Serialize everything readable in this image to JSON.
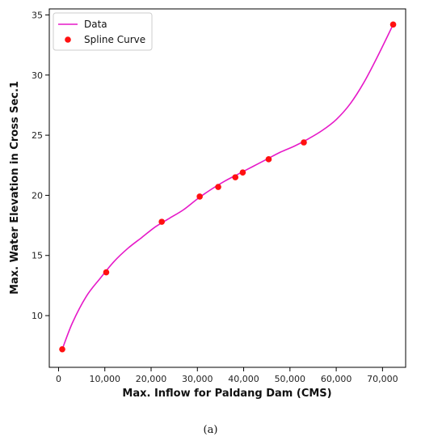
{
  "chart_data": {
    "type": "line",
    "xlabel": "Max. Inflow for Paldang Dam (CMS)",
    "ylabel": "Max. Water Elevation in Cross Sec.1",
    "xlim": [
      -2000,
      75000
    ],
    "ylim": [
      5.7,
      35.5
    ],
    "x_ticks": [
      0,
      10000,
      20000,
      30000,
      40000,
      50000,
      60000,
      70000
    ],
    "x_tick_labels": [
      "0",
      "10,000",
      "20,000",
      "30,000",
      "40,000",
      "50,000",
      "60,000",
      "70,000"
    ],
    "y_ticks": [
      10,
      15,
      20,
      25,
      30,
      35
    ],
    "y_tick_labels": [
      "10",
      "15",
      "20",
      "25",
      "30",
      "35"
    ],
    "grid": false,
    "legend_position": "top-left",
    "series": [
      {
        "name": "Data",
        "style": "line",
        "color": "#e619c8",
        "x": [
          800,
          3000,
          6000,
          9000,
          12000,
          15000,
          18000,
          21000,
          24000,
          27000,
          30000,
          33000,
          36000,
          39000,
          42000,
          45000,
          48000,
          51000,
          54000,
          57000,
          60000,
          63000,
          66000,
          69000,
          72300
        ],
        "y": [
          7.2,
          9.4,
          11.6,
          13.1,
          14.5,
          15.6,
          16.5,
          17.4,
          18.1,
          18.8,
          19.7,
          20.5,
          21.2,
          21.8,
          22.4,
          23.0,
          23.6,
          24.1,
          24.7,
          25.4,
          26.3,
          27.6,
          29.4,
          31.6,
          34.2
        ]
      },
      {
        "name": "Spline Curve",
        "style": "scatter",
        "color": "#ff1010",
        "x": [
          800,
          10300,
          22300,
          30500,
          34500,
          38200,
          39800,
          45400,
          53000,
          72300
        ],
        "y": [
          7.2,
          13.6,
          17.8,
          19.9,
          20.7,
          21.5,
          21.9,
          23.0,
          24.4,
          34.2
        ]
      }
    ],
    "caption": "(a)"
  }
}
